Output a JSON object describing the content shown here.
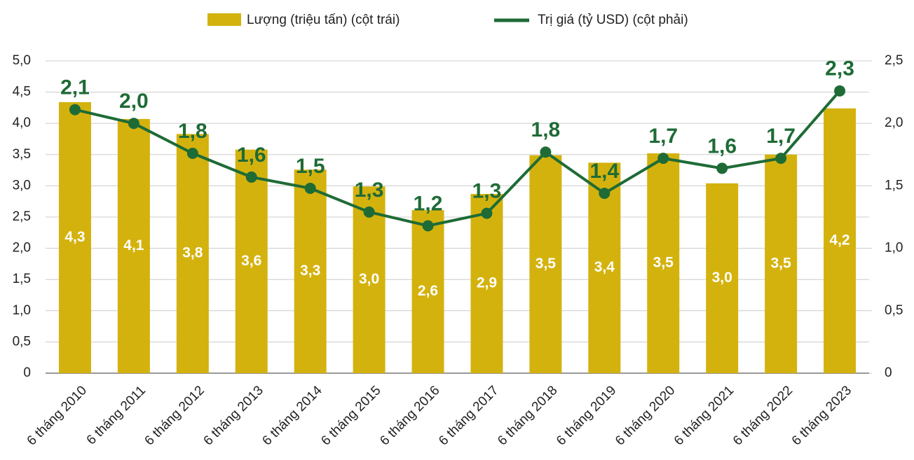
{
  "chart_data": {
    "type": "bar-line",
    "categories": [
      "6 tháng 2010",
      "6 tháng 2011",
      "6 tháng 2012",
      "6 tháng 2013",
      "6 tháng 2014",
      "6 tháng 2015",
      "6 tháng 2016",
      "6 tháng 2017",
      "6 tháng 2018",
      "6 tháng 2019",
      "6 tháng 2020",
      "6 tháng 2021",
      "6 tháng 2022",
      "6 tháng 2023"
    ],
    "series": [
      {
        "name": "Lượng (triệu tấn) (cột trái)",
        "type": "bar",
        "color": "#d4b20e",
        "values": [
          4.34,
          4.07,
          3.83,
          3.58,
          3.26,
          2.99,
          2.61,
          2.87,
          3.49,
          3.37,
          3.52,
          3.04,
          3.5,
          4.24
        ],
        "value_labels": [
          "4,3",
          "4,1",
          "3,8",
          "3,6",
          "3,3",
          "3,0",
          "2,6",
          "2,9",
          "3,5",
          "3,4",
          "3,5",
          "3,0",
          "3,5",
          "4,2"
        ]
      },
      {
        "name": "Trị giá (tỷ USD) (cột phải)",
        "type": "line",
        "axis": "y2",
        "color": "#1e6b36",
        "values": [
          2.11,
          2.0,
          1.76,
          1.57,
          1.48,
          1.29,
          1.18,
          1.28,
          1.77,
          1.44,
          1.72,
          1.64,
          1.72,
          2.26
        ],
        "value_labels": [
          "2,1",
          "2,0",
          "1,8",
          "1,6",
          "1,5",
          "1,3",
          "1,2",
          "1,3",
          "1,8",
          "1,4",
          "1,7",
          "1,6",
          "1,7",
          "2,3"
        ]
      }
    ],
    "ylim": [
      0,
      5
    ],
    "yticks": [
      0,
      {
        "value": 0.5,
        "label": "0,5"
      },
      {
        "value": 1,
        "label": "1,0"
      },
      {
        "value": 1.5,
        "label": "1,5"
      },
      {
        "value": 2,
        "label": "2,0"
      },
      {
        "value": 2.5,
        "label": "2,5"
      },
      {
        "value": 3,
        "label": "3,0"
      },
      {
        "value": 3.5,
        "label": "3,5"
      },
      {
        "value": 4,
        "label": "4,0"
      },
      {
        "value": 4.5,
        "label": "4,5"
      },
      {
        "value": 5,
        "label": "5,0"
      }
    ],
    "y2lim": [
      0,
      2.5
    ],
    "y2ticks": [
      0,
      {
        "value": 0.5,
        "label": "0,5"
      },
      {
        "value": 1,
        "label": "1,0"
      },
      {
        "value": 1.5,
        "label": "1,5"
      },
      {
        "value": 2,
        "label": "2,0"
      },
      {
        "value": 2.5,
        "label": "2,5"
      }
    ],
    "grid": true
  }
}
